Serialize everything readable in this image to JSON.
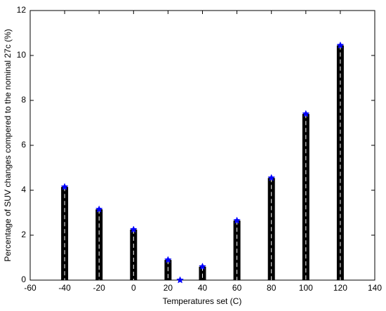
{
  "chart_data": {
    "type": "bar",
    "x": [
      -40,
      -20,
      0,
      20,
      27,
      40,
      60,
      80,
      100,
      120
    ],
    "values": [
      4.15,
      3.15,
      2.25,
      0.9,
      0,
      0.6,
      2.65,
      4.55,
      7.4,
      10.45
    ],
    "color": "#000000",
    "marker_color": "#0000ff",
    "xlabel": "Temperatures set (C)",
    "ylabel": "Percentage of SUV changes compered to the nominal 27c   (%)",
    "xlim": [
      -60,
      140
    ],
    "xticks": [
      -60,
      -40,
      -20,
      0,
      20,
      40,
      60,
      80,
      100,
      120,
      140
    ],
    "ylim": [
      0,
      12
    ],
    "yticks": [
      0,
      2,
      4,
      6,
      8,
      10,
      12
    ],
    "grid": false
  }
}
